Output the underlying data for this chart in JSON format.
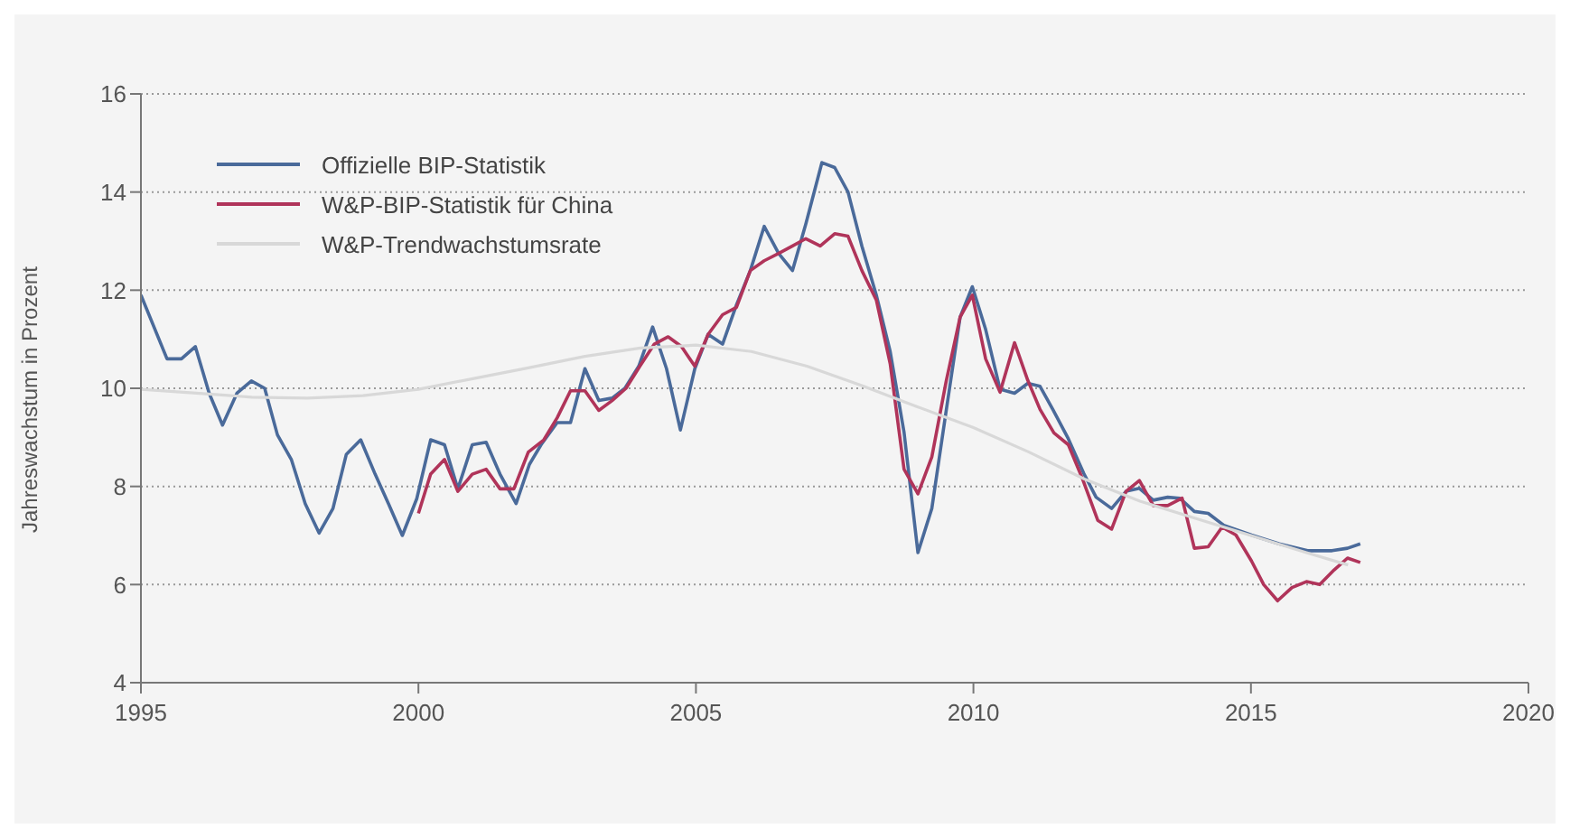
{
  "chart_data": {
    "type": "line",
    "ylabel": "Jahreswachstum in Prozent",
    "xlim": [
      1995,
      2020
    ],
    "xticks": [
      1995,
      2000,
      2005,
      2010,
      2015,
      2020
    ],
    "ylim": [
      4,
      16
    ],
    "yticks": [
      4,
      6,
      8,
      10,
      12,
      14,
      16
    ],
    "grid": "y",
    "legend": "top left",
    "marker": "none",
    "line_style": "solid",
    "series": [
      {
        "name": "Offizielle BIP-Statistik",
        "color": "#4a6a9a",
        "x": [
          1995,
          1995.47,
          1995.73,
          1995.98,
          1996.23,
          1996.47,
          1996.73,
          1996.99,
          1997.23,
          1997.46,
          1997.71,
          1997.96,
          1998.21,
          1998.46,
          1998.7,
          1998.96,
          1999.22,
          1999.46,
          1999.71,
          1999.97,
          2000.22,
          2000.47,
          2000.71,
          2000.97,
          2001.22,
          2001.47,
          2001.76,
          2002,
          2002.21,
          2002.5,
          2002.74,
          2003,
          2003.25,
          2003.49,
          2003.72,
          2003.97,
          2004.22,
          2004.47,
          2004.72,
          2004.98,
          2005.22,
          2005.48,
          2005.73,
          2005.98,
          2006.23,
          2006.49,
          2006.74,
          2006.98,
          2007.27,
          2007.5,
          2007.74,
          2007.99,
          2008.25,
          2008.5,
          2008.75,
          2009,
          2009.25,
          2009.51,
          2009.76,
          2009.98,
          2010.22,
          2010.48,
          2010.74,
          2010.98,
          2011.2,
          2011.43,
          2011.71,
          2011.99,
          2012.21,
          2012.49,
          2012.75,
          2012.99,
          2013.24,
          2013.5,
          2013.72,
          2013.98,
          2014.23,
          2014.51,
          2015.01,
          2015.51,
          2016.02,
          2016.46,
          2016.74,
          2016.97
        ],
        "values": [
          11.9,
          10.6,
          10.6,
          10.85,
          9.9,
          9.25,
          9.9,
          10.15,
          10,
          9.05,
          8.55,
          7.65,
          7.05,
          7.55,
          8.65,
          8.95,
          8.25,
          7.65,
          7,
          7.75,
          8.95,
          8.85,
          7.95,
          8.85,
          8.9,
          8.25,
          7.65,
          8.45,
          8.85,
          9.3,
          9.3,
          10.4,
          9.75,
          9.8,
          10,
          10.45,
          11.25,
          10.4,
          9.15,
          10.4,
          11.1,
          10.9,
          11.7,
          12.4,
          13.3,
          12.75,
          12.4,
          13.35,
          14.6,
          14.5,
          14,
          12.9,
          11.9,
          10.75,
          9.1,
          6.65,
          7.55,
          9.55,
          11.45,
          12.07,
          11.2,
          9.98,
          9.9,
          10.1,
          10.04,
          9.57,
          8.97,
          8.26,
          7.78,
          7.55,
          7.9,
          7.96,
          7.72,
          7.78,
          7.76,
          7.49,
          7.45,
          7.21,
          7.01,
          6.83,
          6.69,
          6.69,
          6.74,
          6.83
        ]
      },
      {
        "name": "W&P-BIP-Statistik für China",
        "color": "#b0345a",
        "x": [
          2000,
          2000.22,
          2000.47,
          2000.71,
          2000.97,
          2001.22,
          2001.47,
          2001.72,
          2001.98,
          2002.26,
          2002.5,
          2002.74,
          2003,
          2003.25,
          2003.49,
          2003.74,
          2003.99,
          2004.25,
          2004.5,
          2004.74,
          2004.98,
          2005.22,
          2005.48,
          2005.73,
          2005.98,
          2006.23,
          2006.49,
          2006.74,
          2006.98,
          2007.24,
          2007.5,
          2007.74,
          2007.99,
          2008.25,
          2008.5,
          2008.75,
          2009,
          2009.25,
          2009.51,
          2009.76,
          2009.98,
          2010.22,
          2010.48,
          2010.74,
          2010.98,
          2011.2,
          2011.45,
          2011.71,
          2011.97,
          2012.24,
          2012.49,
          2012.75,
          2012.99,
          2013.24,
          2013.5,
          2013.76,
          2013.98,
          2014.23,
          2014.48,
          2014.73,
          2015.01,
          2015.23,
          2015.48,
          2015.74,
          2016,
          2016.24,
          2016.5,
          2016.74,
          2016.97
        ],
        "values": [
          7.45,
          8.25,
          8.55,
          7.9,
          8.25,
          8.35,
          7.95,
          7.95,
          8.7,
          8.95,
          9.4,
          9.95,
          9.95,
          9.55,
          9.75,
          10,
          10.45,
          10.9,
          11.05,
          10.85,
          10.45,
          11.1,
          11.5,
          11.65,
          12.4,
          12.6,
          12.75,
          12.9,
          13.05,
          12.9,
          13.15,
          13.1,
          12.4,
          11.8,
          10.5,
          8.35,
          7.85,
          8.6,
          10.15,
          11.45,
          11.9,
          10.6,
          9.92,
          10.93,
          10.16,
          9.57,
          9.09,
          8.85,
          8.14,
          7.31,
          7.13,
          7.9,
          8.12,
          7.61,
          7.61,
          7.76,
          6.74,
          6.77,
          7.17,
          7.01,
          6.48,
          6,
          5.67,
          5.94,
          6.06,
          6,
          6.3,
          6.54,
          6.45
        ]
      },
      {
        "name": "W&P-Trendwachstumsrate",
        "color": "#d8d8d8",
        "x": [
          1995,
          1996,
          1997,
          1998,
          1999,
          2000,
          2001,
          2002,
          2003,
          2004,
          2005,
          2006,
          2007,
          2008,
          2009,
          2010,
          2011,
          2012,
          2013,
          2014,
          2015,
          2016,
          2016.75
        ],
        "values": [
          9.98,
          9.9,
          9.82,
          9.8,
          9.85,
          9.98,
          10.2,
          10.42,
          10.65,
          10.82,
          10.88,
          10.75,
          10.45,
          10.05,
          9.62,
          9.2,
          8.7,
          8.15,
          7.7,
          7.35,
          7,
          6.65,
          6.4
        ]
      }
    ]
  }
}
